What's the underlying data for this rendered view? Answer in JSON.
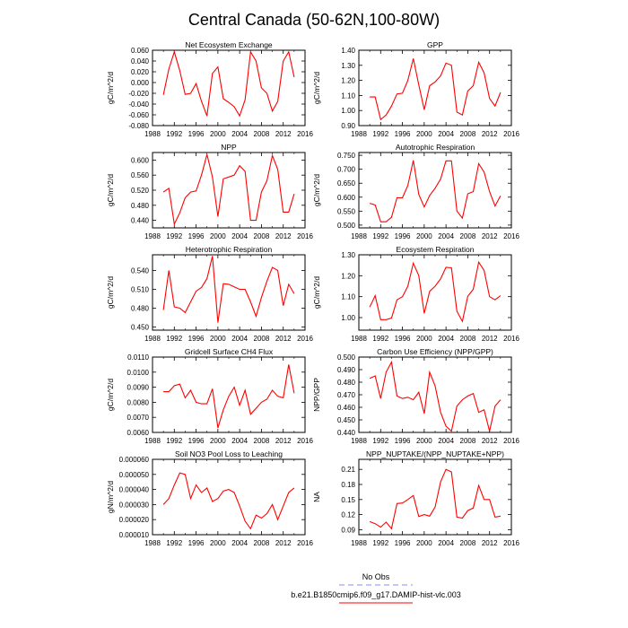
{
  "figure": {
    "title": "Central Canada (50-62N,100-80W)",
    "legend": [
      {
        "label": "No Obs",
        "color": "#8888ff",
        "dash": true
      },
      {
        "label": "b.e21.B1850cmip6.f09_g17.DAMIP-hist-vlc.003",
        "color": "#ff0000",
        "dash": false
      }
    ],
    "line_color": "#ff0000"
  },
  "chart_data": [
    {
      "type": "line",
      "title": "Net Ecosystem Exchange",
      "ylabel": "gC/m^2/d",
      "xlabel": "",
      "xlim": [
        1988,
        2016
      ],
      "xticks": [
        1988,
        1992,
        1996,
        2000,
        2004,
        2008,
        2012,
        2016
      ],
      "ylim": [
        -0.08,
        0.06
      ],
      "yticks": [
        "0.060",
        "0.040",
        "0.020",
        "0.000",
        "-0.020",
        "-0.040",
        "-0.060",
        "-0.080"
      ],
      "series": [
        {
          "values": [
            -0.023,
            0.025,
            0.057,
            0.022,
            -0.022,
            -0.02,
            -0.002,
            -0.035,
            -0.062,
            0.017,
            0.029,
            -0.03,
            -0.037,
            -0.045,
            -0.062,
            -0.032,
            0.057,
            0.04,
            -0.01,
            -0.02,
            -0.053,
            -0.035,
            0.04,
            0.057,
            0.01
          ]
        }
      ],
      "x": [
        1990,
        1991,
        1992,
        1993,
        1994,
        1995,
        1996,
        1997,
        1998,
        1999,
        2000,
        2001,
        2002,
        2003,
        2004,
        2005,
        2006,
        2007,
        2008,
        2009,
        2010,
        2011,
        2012,
        2013,
        2014
      ]
    },
    {
      "type": "line",
      "title": "GPP",
      "ylabel": "gC/m^2/d",
      "xlabel": "",
      "xlim": [
        1988,
        2016
      ],
      "xticks": [
        1988,
        1992,
        1996,
        2000,
        2004,
        2008,
        2012,
        2016
      ],
      "ylim": [
        0.9,
        1.4
      ],
      "yticks": [
        "1.40",
        "1.30",
        "1.20",
        "1.10",
        "1.00",
        "0.90"
      ],
      "series": [
        {
          "values": [
            1.09,
            1.09,
            0.94,
            0.97,
            1.03,
            1.11,
            1.115,
            1.2,
            1.345,
            1.17,
            1.005,
            1.165,
            1.19,
            1.23,
            1.315,
            1.3,
            0.99,
            0.97,
            1.13,
            1.165,
            1.32,
            1.25,
            1.08,
            1.03,
            1.12
          ]
        }
      ],
      "x": [
        1990,
        1991,
        1992,
        1993,
        1994,
        1995,
        1996,
        1997,
        1998,
        1999,
        2000,
        2001,
        2002,
        2003,
        2004,
        2005,
        2006,
        2007,
        2008,
        2009,
        2010,
        2011,
        2012,
        2013,
        2014
      ]
    },
    {
      "type": "line",
      "title": "NPP",
      "ylabel": "gC/m^2/d",
      "xlabel": "",
      "xlim": [
        1988,
        2016
      ],
      "xticks": [
        1988,
        1992,
        1996,
        2000,
        2004,
        2008,
        2012,
        2016
      ],
      "ylim": [
        0.42,
        0.62
      ],
      "yticks": [
        "0.600",
        "0.560",
        "0.520",
        "0.480",
        "0.440"
      ],
      "series": [
        {
          "values": [
            0.515,
            0.525,
            0.43,
            0.46,
            0.5,
            0.515,
            0.518,
            0.56,
            0.615,
            0.555,
            0.45,
            0.55,
            0.555,
            0.56,
            0.585,
            0.57,
            0.44,
            0.44,
            0.515,
            0.545,
            0.612,
            0.575,
            0.462,
            0.462,
            0.51
          ]
        }
      ],
      "x": [
        1990,
        1991,
        1992,
        1993,
        1994,
        1995,
        1996,
        1997,
        1998,
        1999,
        2000,
        2001,
        2002,
        2003,
        2004,
        2005,
        2006,
        2007,
        2008,
        2009,
        2010,
        2011,
        2012,
        2013,
        2014
      ]
    },
    {
      "type": "line",
      "title": "Autotrophic Respiration",
      "ylabel": "gC/m^2/d",
      "xlabel": "",
      "xlim": [
        1988,
        2016
      ],
      "xticks": [
        1988,
        1992,
        1996,
        2000,
        2004,
        2008,
        2012,
        2016
      ],
      "ylim": [
        0.49,
        0.76
      ],
      "yticks": [
        "0.750",
        "0.700",
        "0.650",
        "0.600",
        "0.550",
        "0.500"
      ],
      "series": [
        {
          "values": [
            0.578,
            0.572,
            0.512,
            0.512,
            0.528,
            0.598,
            0.598,
            0.642,
            0.732,
            0.61,
            0.565,
            0.606,
            0.632,
            0.665,
            0.73,
            0.73,
            0.55,
            0.525,
            0.612,
            0.62,
            0.72,
            0.69,
            0.62,
            0.568,
            0.605
          ]
        }
      ],
      "x": [
        1990,
        1991,
        1992,
        1993,
        1994,
        1995,
        1996,
        1997,
        1998,
        1999,
        2000,
        2001,
        2002,
        2003,
        2004,
        2005,
        2006,
        2007,
        2008,
        2009,
        2010,
        2011,
        2012,
        2013,
        2014
      ]
    },
    {
      "type": "line",
      "title": "Heterotrophic Respiration",
      "ylabel": "gC/m^2/d",
      "xlabel": "",
      "xlim": [
        1988,
        2016
      ],
      "xticks": [
        1988,
        1992,
        1996,
        2000,
        2004,
        2008,
        2012,
        2016
      ],
      "ylim": [
        0.445,
        0.565
      ],
      "yticks": [
        "0.540",
        "0.510",
        "0.480",
        "0.450"
      ],
      "series": [
        {
          "values": [
            0.477,
            0.54,
            0.482,
            0.48,
            0.473,
            0.49,
            0.507,
            0.513,
            0.527,
            0.563,
            0.457,
            0.519,
            0.518,
            0.514,
            0.51,
            0.51,
            0.49,
            0.467,
            0.497,
            0.523,
            0.545,
            0.54,
            0.484,
            0.518,
            0.503
          ]
        }
      ],
      "x": [
        1990,
        1991,
        1992,
        1993,
        1994,
        1995,
        1996,
        1997,
        1998,
        1999,
        2000,
        2001,
        2002,
        2003,
        2004,
        2005,
        2006,
        2007,
        2008,
        2009,
        2010,
        2011,
        2012,
        2013,
        2014
      ]
    },
    {
      "type": "line",
      "title": "Ecosystem Respiration",
      "ylabel": "gC/m^2/d",
      "xlabel": "",
      "xlim": [
        1988,
        2016
      ],
      "xticks": [
        1988,
        1992,
        1996,
        2000,
        2004,
        2008,
        2012,
        2016
      ],
      "ylim": [
        0.94,
        1.3
      ],
      "yticks": [
        "1.30",
        "1.20",
        "1.10",
        "1.00"
      ],
      "series": [
        {
          "values": [
            1.05,
            1.105,
            0.99,
            0.99,
            0.998,
            1.085,
            1.1,
            1.15,
            1.26,
            1.2,
            1.02,
            1.125,
            1.15,
            1.185,
            1.24,
            1.238,
            1.03,
            0.982,
            1.102,
            1.135,
            1.265,
            1.225,
            1.1,
            1.085,
            1.105
          ]
        }
      ],
      "x": [
        1990,
        1991,
        1992,
        1993,
        1994,
        1995,
        1996,
        1997,
        1998,
        1999,
        2000,
        2001,
        2002,
        2003,
        2004,
        2005,
        2006,
        2007,
        2008,
        2009,
        2010,
        2011,
        2012,
        2013,
        2014
      ]
    },
    {
      "type": "line",
      "title": "Gridcell Surface CH4 Flux",
      "ylabel": "gC/m^2/d",
      "xlabel": "",
      "xlim": [
        1988,
        2016
      ],
      "xticks": [
        1988,
        1992,
        1996,
        2000,
        2004,
        2008,
        2012,
        2016
      ],
      "ylim": [
        0.006,
        0.011
      ],
      "yticks": [
        "0.0110",
        "0.0100",
        "0.0090",
        "0.0080",
        "0.0070",
        "0.0060"
      ],
      "series": [
        {
          "values": [
            0.0087,
            0.0087,
            0.0091,
            0.0092,
            0.0083,
            0.0088,
            0.008,
            0.0079,
            0.0079,
            0.0089,
            0.0063,
            0.0075,
            0.0084,
            0.009,
            0.0078,
            0.0088,
            0.0072,
            0.0076,
            0.008,
            0.0082,
            0.0088,
            0.0084,
            0.0083,
            0.0105,
            0.0086
          ]
        }
      ],
      "x": [
        1990,
        1991,
        1992,
        1993,
        1994,
        1995,
        1996,
        1997,
        1998,
        1999,
        2000,
        2001,
        2002,
        2003,
        2004,
        2005,
        2006,
        2007,
        2008,
        2009,
        2010,
        2011,
        2012,
        2013,
        2014
      ]
    },
    {
      "type": "line",
      "title": "Carbon Use Efficiency (NPP/GPP)",
      "ylabel": "NPP/GPP",
      "xlabel": "",
      "xlim": [
        1988,
        2016
      ],
      "xticks": [
        1988,
        1992,
        1996,
        2000,
        2004,
        2008,
        2012,
        2016
      ],
      "ylim": [
        0.44,
        0.5
      ],
      "yticks": [
        "0.500",
        "0.490",
        "0.480",
        "0.470",
        "0.460",
        "0.450",
        "0.440"
      ],
      "series": [
        {
          "values": [
            0.483,
            0.485,
            0.467,
            0.488,
            0.496,
            0.469,
            0.467,
            0.468,
            0.466,
            0.472,
            0.455,
            0.488,
            0.477,
            0.456,
            0.445,
            0.441,
            0.461,
            0.466,
            0.469,
            0.471,
            0.456,
            0.458,
            0.441,
            0.461,
            0.466
          ]
        }
      ],
      "x": [
        1990,
        1991,
        1992,
        1993,
        1994,
        1995,
        1996,
        1997,
        1998,
        1999,
        2000,
        2001,
        2002,
        2003,
        2004,
        2005,
        2006,
        2007,
        2008,
        2009,
        2010,
        2011,
        2012,
        2013,
        2014
      ]
    },
    {
      "type": "line",
      "title": "Soil NO3 Pool Loss to Leaching",
      "ylabel": "gN/m^2/d",
      "xlabel": "",
      "xlim": [
        1988,
        2016
      ],
      "xticks": [
        1988,
        1992,
        1996,
        2000,
        2004,
        2008,
        2012,
        2016
      ],
      "ylim": [
        1e-05,
        6e-05
      ],
      "yticks": [
        "0.000060",
        "0.000050",
        "0.000040",
        "0.000030",
        "0.000020",
        "0.000010"
      ],
      "series": [
        {
          "values": [
            3e-05,
            3.4e-05,
            4.3e-05,
            5.1e-05,
            5e-05,
            3.4e-05,
            4.3e-05,
            3.8e-05,
            4.1e-05,
            3.2e-05,
            3.4e-05,
            3.9e-05,
            4e-05,
            3.8e-05,
            2.9e-05,
            1.9e-05,
            1.4e-05,
            2.3e-05,
            2.1e-05,
            2.4e-05,
            3e-05,
            2e-05,
            2.9e-05,
            3.8e-05,
            4.1e-05
          ]
        }
      ],
      "x": [
        1990,
        1991,
        1992,
        1993,
        1994,
        1995,
        1996,
        1997,
        1998,
        1999,
        2000,
        2001,
        2002,
        2003,
        2004,
        2005,
        2006,
        2007,
        2008,
        2009,
        2010,
        2011,
        2012,
        2013,
        2014
      ]
    },
    {
      "type": "line",
      "title": "NPP_NUPTAKE/(NPP_NUPTAKE+NPP)",
      "ylabel": "NA",
      "xlabel": "",
      "xlim": [
        1988,
        2016
      ],
      "xticks": [
        1988,
        1992,
        1996,
        2000,
        2004,
        2008,
        2012,
        2016
      ],
      "ylim": [
        0.08,
        0.23
      ],
      "yticks": [
        "0.21",
        "0.18",
        "0.15",
        "0.12",
        "0.09"
      ],
      "series": [
        {
          "values": [
            0.106,
            0.102,
            0.095,
            0.105,
            0.092,
            0.142,
            0.143,
            0.15,
            0.158,
            0.116,
            0.12,
            0.117,
            0.135,
            0.185,
            0.21,
            0.205,
            0.115,
            0.113,
            0.128,
            0.133,
            0.178,
            0.15,
            0.15,
            0.115,
            0.117
          ]
        }
      ],
      "x": [
        1990,
        1991,
        1992,
        1993,
        1994,
        1995,
        1996,
        1997,
        1998,
        1999,
        2000,
        2001,
        2002,
        2003,
        2004,
        2005,
        2006,
        2007,
        2008,
        2009,
        2010,
        2011,
        2012,
        2013,
        2014
      ]
    }
  ]
}
